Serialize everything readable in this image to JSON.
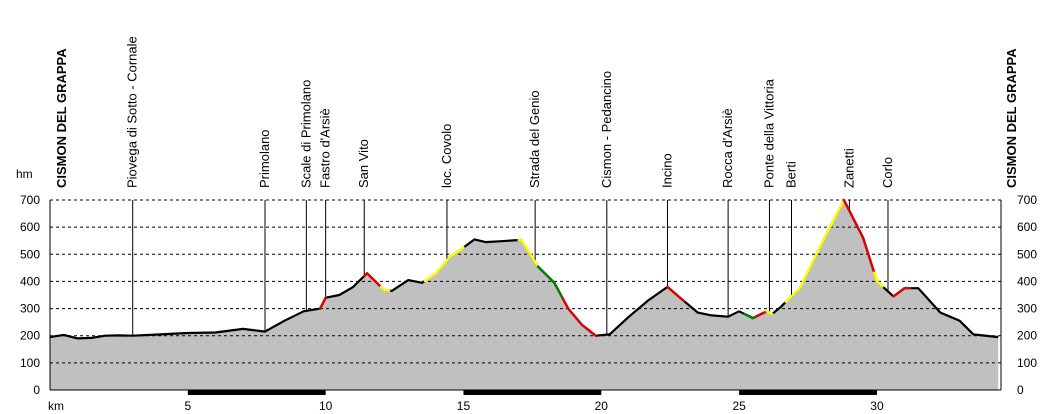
{
  "chart_data": {
    "type": "area",
    "title": "",
    "xlabel": "km",
    "ylabel": "hm",
    "xlim": [
      0,
      34.5
    ],
    "ylim": [
      0,
      700
    ],
    "x_ticks": [
      5,
      10,
      15,
      20,
      25,
      30
    ],
    "y_ticks": [
      0,
      100,
      200,
      300,
      400,
      500,
      600,
      700
    ],
    "grid": true,
    "fill_color": "#c0c0c0",
    "line_color": "#000000",
    "profile": [
      {
        "x": 0,
        "y": 195
      },
      {
        "x": 0.5,
        "y": 203
      },
      {
        "x": 1.0,
        "y": 190
      },
      {
        "x": 1.5,
        "y": 192
      },
      {
        "x": 2.0,
        "y": 200
      },
      {
        "x": 2.5,
        "y": 201
      },
      {
        "x": 3.0,
        "y": 200
      },
      {
        "x": 4.0,
        "y": 205
      },
      {
        "x": 5.0,
        "y": 210
      },
      {
        "x": 6.0,
        "y": 212
      },
      {
        "x": 7.0,
        "y": 225
      },
      {
        "x": 7.8,
        "y": 215
      },
      {
        "x": 8.5,
        "y": 255
      },
      {
        "x": 9.2,
        "y": 290
      },
      {
        "x": 9.8,
        "y": 300
      },
      {
        "x": 10.0,
        "y": 340
      },
      {
        "x": 10.5,
        "y": 350
      },
      {
        "x": 11.0,
        "y": 380
      },
      {
        "x": 11.3,
        "y": 410
      },
      {
        "x": 11.5,
        "y": 430
      },
      {
        "x": 11.8,
        "y": 400
      },
      {
        "x": 12.1,
        "y": 370
      },
      {
        "x": 12.4,
        "y": 365
      },
      {
        "x": 13.0,
        "y": 405
      },
      {
        "x": 13.5,
        "y": 395
      },
      {
        "x": 14.0,
        "y": 430
      },
      {
        "x": 14.5,
        "y": 490
      },
      {
        "x": 15.0,
        "y": 525
      },
      {
        "x": 15.4,
        "y": 555
      },
      {
        "x": 15.8,
        "y": 545
      },
      {
        "x": 16.3,
        "y": 548
      },
      {
        "x": 17.1,
        "y": 553
      },
      {
        "x": 17.4,
        "y": 505
      },
      {
        "x": 17.7,
        "y": 455
      },
      {
        "x": 18.3,
        "y": 395
      },
      {
        "x": 18.8,
        "y": 300
      },
      {
        "x": 19.3,
        "y": 240
      },
      {
        "x": 19.8,
        "y": 200
      },
      {
        "x": 20.3,
        "y": 205
      },
      {
        "x": 21.0,
        "y": 270
      },
      {
        "x": 21.7,
        "y": 330
      },
      {
        "x": 22.4,
        "y": 380
      },
      {
        "x": 22.8,
        "y": 345
      },
      {
        "x": 23.5,
        "y": 285
      },
      {
        "x": 24.0,
        "y": 275
      },
      {
        "x": 24.6,
        "y": 270
      },
      {
        "x": 25.0,
        "y": 290
      },
      {
        "x": 25.5,
        "y": 265
      },
      {
        "x": 26.0,
        "y": 290
      },
      {
        "x": 26.2,
        "y": 280
      },
      {
        "x": 26.5,
        "y": 305
      },
      {
        "x": 27.2,
        "y": 375
      },
      {
        "x": 28.0,
        "y": 540
      },
      {
        "x": 28.8,
        "y": 700
      },
      {
        "x": 29.5,
        "y": 560
      },
      {
        "x": 30.0,
        "y": 400
      },
      {
        "x": 30.6,
        "y": 345
      },
      {
        "x": 31.0,
        "y": 375
      },
      {
        "x": 31.5,
        "y": 375
      },
      {
        "x": 32.3,
        "y": 285
      },
      {
        "x": 33.0,
        "y": 255
      },
      {
        "x": 33.5,
        "y": 205
      },
      {
        "x": 34.4,
        "y": 195
      }
    ],
    "waypoints": [
      {
        "x": 0,
        "name": "CISMON DEL GRAPPA",
        "bold": true
      },
      {
        "x": 3.0,
        "name": "Piovega di Sotto - Cornale"
      },
      {
        "x": 7.8,
        "name": "Primolano"
      },
      {
        "x": 9.3,
        "name": "Scale di Primolano"
      },
      {
        "x": 10.0,
        "name": "Fastro d'Arsiè"
      },
      {
        "x": 11.4,
        "name": "San Vito"
      },
      {
        "x": 14.4,
        "name": "loc. Covolo"
      },
      {
        "x": 17.6,
        "name": "Strada del Genio"
      },
      {
        "x": 20.2,
        "name": "Cismon - Pedancino"
      },
      {
        "x": 22.4,
        "name": "Incino"
      },
      {
        "x": 24.6,
        "name": "Rocca d'Arsiè"
      },
      {
        "x": 26.1,
        "name": "Ponte della Vittoria"
      },
      {
        "x": 26.9,
        "name": "Berti"
      },
      {
        "x": 29.0,
        "name": "Zanetti"
      },
      {
        "x": 30.4,
        "name": "Corlo"
      },
      {
        "x": 34.5,
        "name": "CISMON DEL GRAPPA",
        "bold": true
      }
    ],
    "gradient_segments": [
      {
        "x0": 9.8,
        "x1": 10.0,
        "color": "#e00000"
      },
      {
        "x0": 11.4,
        "x1": 12.0,
        "color": "#e00000"
      },
      {
        "x0": 12.0,
        "x1": 12.3,
        "color": "#ffff00"
      },
      {
        "x0": 13.6,
        "x1": 15.0,
        "color": "#ffff00"
      },
      {
        "x0": 17.0,
        "x1": 17.7,
        "color": "#ffff00"
      },
      {
        "x0": 17.7,
        "x1": 18.6,
        "color": "#008000"
      },
      {
        "x0": 18.6,
        "x1": 19.8,
        "color": "#e00000"
      },
      {
        "x0": 22.4,
        "x1": 23.0,
        "color": "#e00000"
      },
      {
        "x0": 25.2,
        "x1": 25.6,
        "color": "#008000"
      },
      {
        "x0": 25.6,
        "x1": 26.0,
        "color": "#e00000"
      },
      {
        "x0": 26.0,
        "x1": 26.2,
        "color": "#ffff00"
      },
      {
        "x0": 26.7,
        "x1": 28.8,
        "color": "#ffff00"
      },
      {
        "x0": 28.8,
        "x1": 30.0,
        "color": "#e00000"
      },
      {
        "x0": 29.9,
        "x1": 30.2,
        "color": "#ffff00"
      },
      {
        "x0": 30.6,
        "x1": 31.2,
        "color": "#e00000"
      }
    ],
    "scale_bars": [
      {
        "x0": 5,
        "x1": 10
      },
      {
        "x0": 15,
        "x1": 20
      },
      {
        "x0": 25,
        "x1": 30
      }
    ]
  }
}
